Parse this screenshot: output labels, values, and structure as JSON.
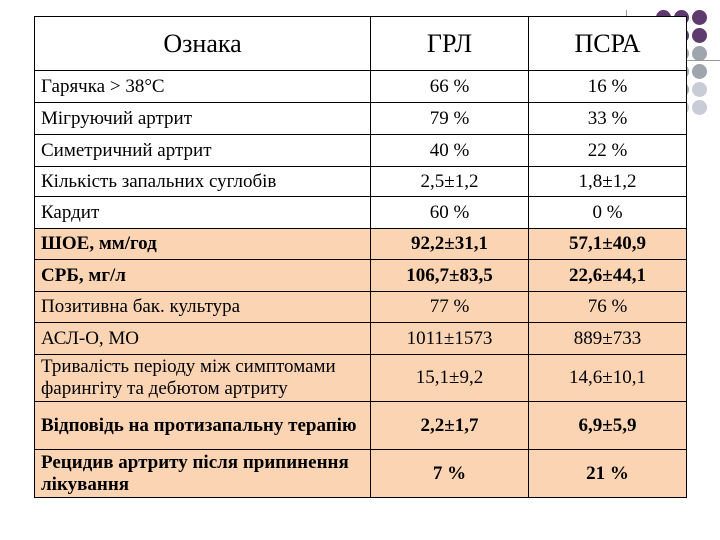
{
  "header": {
    "col1": "Ознака",
    "col2": "ГРЛ",
    "col3": "ПСРА"
  },
  "rows": [
    {
      "label": "Гарячка > 38°С",
      "grl": "66 %",
      "psra": "16 %",
      "style": "plain"
    },
    {
      "label": "Мігруючий артрит",
      "grl": "79 %",
      "psra": "33 %",
      "style": "plain"
    },
    {
      "label": "Симетричний артрит",
      "grl": "40 %",
      "psra": "22 %",
      "style": "plain"
    },
    {
      "label": "Кількість запальних суглобів",
      "grl": "2,5±1,2",
      "psra": "1,8±1,2",
      "style": "plain"
    },
    {
      "label": "Кардит",
      "grl": "60 %",
      "psra": "0 %",
      "style": "plain"
    },
    {
      "label": "ШОЕ, мм/год",
      "grl": "92,2±31,1",
      "psra": "57,1±40,9",
      "style": "shade bold"
    },
    {
      "label": "СРБ, мг/л",
      "grl": "106,7±83,5",
      "psra": "22,6±44,1",
      "style": "shade bold"
    },
    {
      "label": "Позитивна бак. культура",
      "grl": "77 %",
      "psra": "76 %",
      "style": "shade"
    },
    {
      "label": "АСЛ-О, МО",
      "grl": "1011±1573",
      "psra": "889±733",
      "style": "shade"
    },
    {
      "label": "Тривалість періоду між симптомами фарингіту та дебютом артриту",
      "grl": "15,1±9,2",
      "psra": "14,6±10,1",
      "style": "shade"
    },
    {
      "label": "Відповідь на протизапальну терапію",
      "grl": "2,2±1,7",
      "psra": "6,9±5,9",
      "style": "shade bold"
    },
    {
      "label": "Рецидив артриту після припинення лікування",
      "grl": "7 %",
      "psra": "21 %",
      "style": "shade bold"
    }
  ],
  "colors": {
    "shade": "#fbd4b4",
    "dot_purple": "#5e3a6e",
    "dot_olive": "#b5b548",
    "dot_grey": "#9ea5ad",
    "dot_light": "#c8ccd6"
  }
}
